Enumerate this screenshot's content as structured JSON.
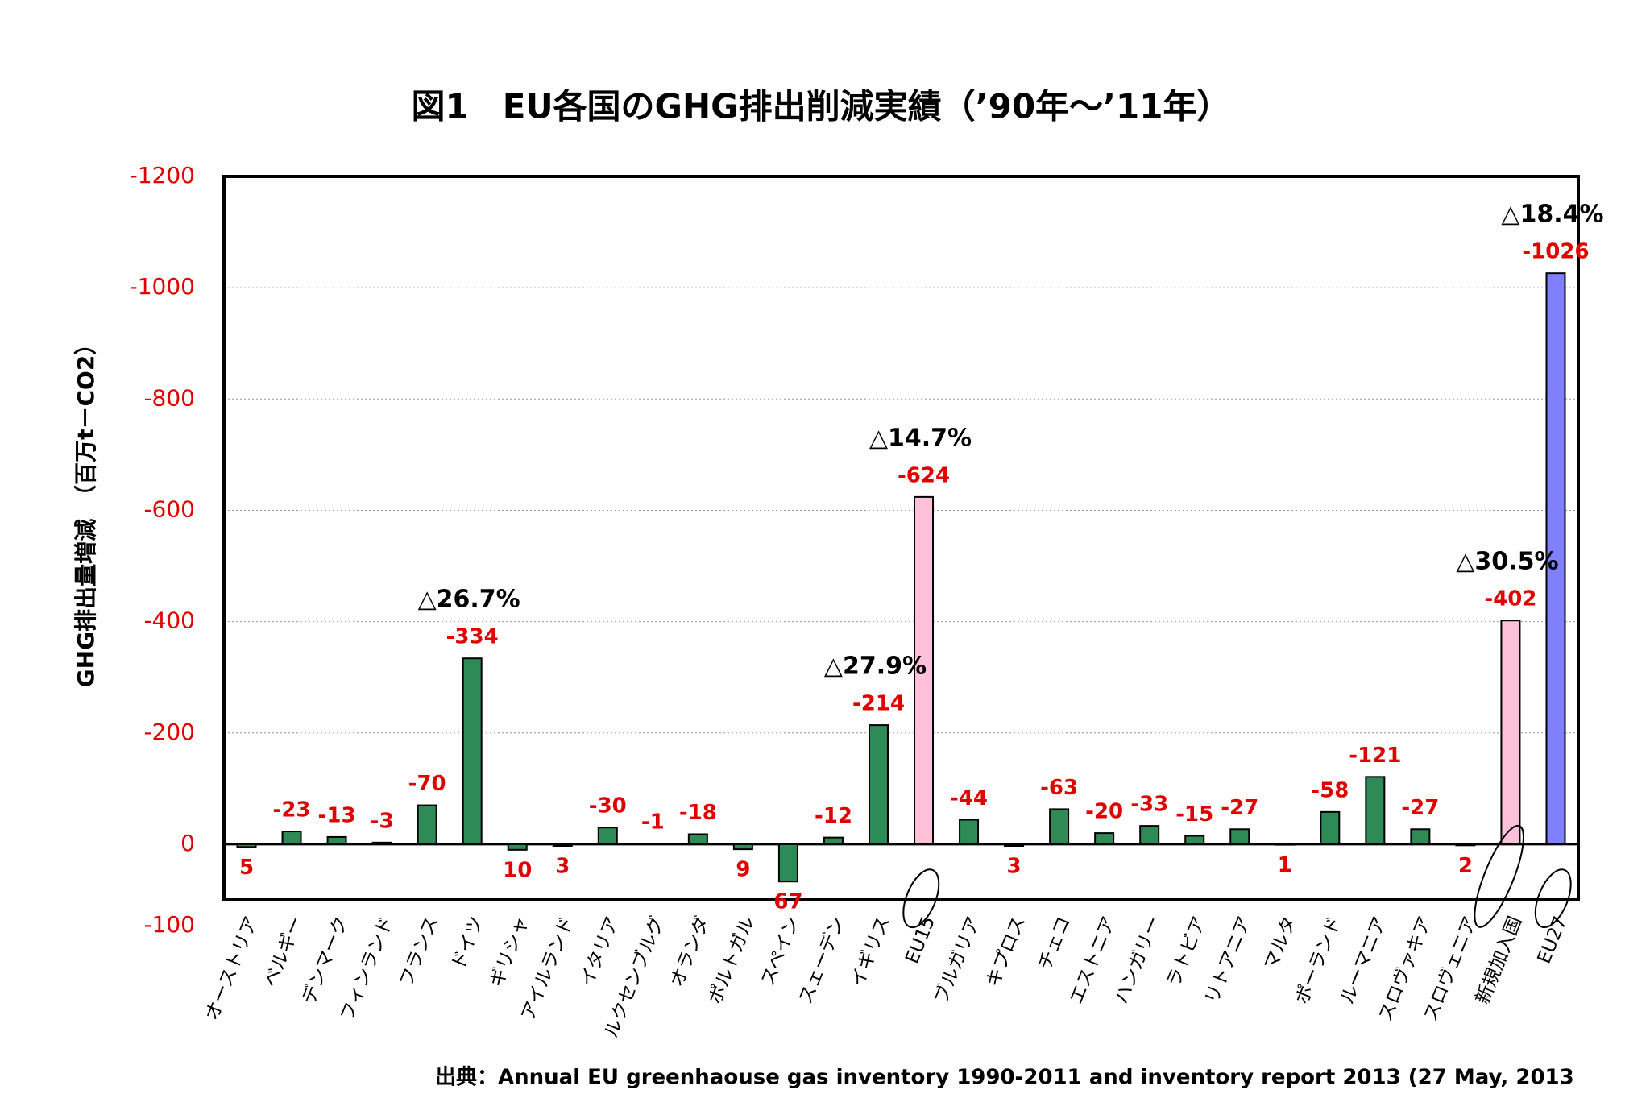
{
  "chart_data": {
    "type": "bar",
    "title": "図1　EU各国のGHG排出削減実績（’90年～’11年）",
    "y_label": "GHG排出量増減　（百万t－CO2）",
    "source": "出典：Annual EU greenhaouse gas inventory 1990-2011 and inventory report 2013 (27 May, 2013",
    "categories": [
      "オーストリア",
      "ベルギー",
      "デンマーク",
      "フィンランド",
      "フランス",
      "ドイツ",
      "ギリシャ",
      "アイルランド",
      "イタリア",
      "ルクセンブルグ",
      "オランダ",
      "ポルトガル",
      "スペイン",
      "スェーデン",
      "イギリス",
      "EU15",
      "ブルガリア",
      "キプロス",
      "チェコ",
      "エストニア",
      "ハンガリー",
      "ラトビア",
      "リトアニア",
      "マルタ",
      "ポーランド",
      "ルーマニア",
      "スロヴァキア",
      "スロヴェニア",
      "新規加入国",
      "EU27"
    ],
    "values": [
      5,
      -23,
      -13,
      -3,
      -70,
      -334,
      10,
      3,
      -30,
      -1,
      -18,
      9,
      67,
      -12,
      -214,
      -624,
      -44,
      3,
      -63,
      -20,
      -33,
      -15,
      -27,
      1,
      -58,
      -121,
      -27,
      2,
      -402,
      -1026
    ],
    "colors": [
      "#2e8b57",
      "#2e8b57",
      "#2e8b57",
      "#2e8b57",
      "#2e8b57",
      "#2e8b57",
      "#2e8b57",
      "#2e8b57",
      "#2e8b57",
      "#2e8b57",
      "#2e8b57",
      "#2e8b57",
      "#2e8b57",
      "#2e8b57",
      "#2e8b57",
      "#ffc0d8",
      "#2e8b57",
      "#2e8b57",
      "#2e8b57",
      "#2e8b57",
      "#2e8b57",
      "#2e8b57",
      "#2e8b57",
      "#2e8b57",
      "#2e8b57",
      "#2e8b57",
      "#2e8b57",
      "#2e8b57",
      "#ffc0d8",
      "#8080ff"
    ],
    "circled_categories": [
      "EU15",
      "新規加入国",
      "EU27"
    ],
    "annotations": [
      {
        "text": "△26.7%",
        "category": "ドイツ"
      },
      {
        "text": "△27.9%",
        "category": "イギリス"
      },
      {
        "text": "△14.7%",
        "category": "EU15"
      },
      {
        "text": "△30.5%",
        "category": "新規加入国"
      },
      {
        "text": "△18.4%",
        "category": "EU27"
      }
    ],
    "ylim": [
      -1200,
      100
    ],
    "y_inverted": true,
    "yticks": [
      -1200,
      -1000,
      -800,
      -600,
      -400,
      -200,
      0,
      {
        "value": 100,
        "label": "-100"
      }
    ],
    "grid": true
  }
}
